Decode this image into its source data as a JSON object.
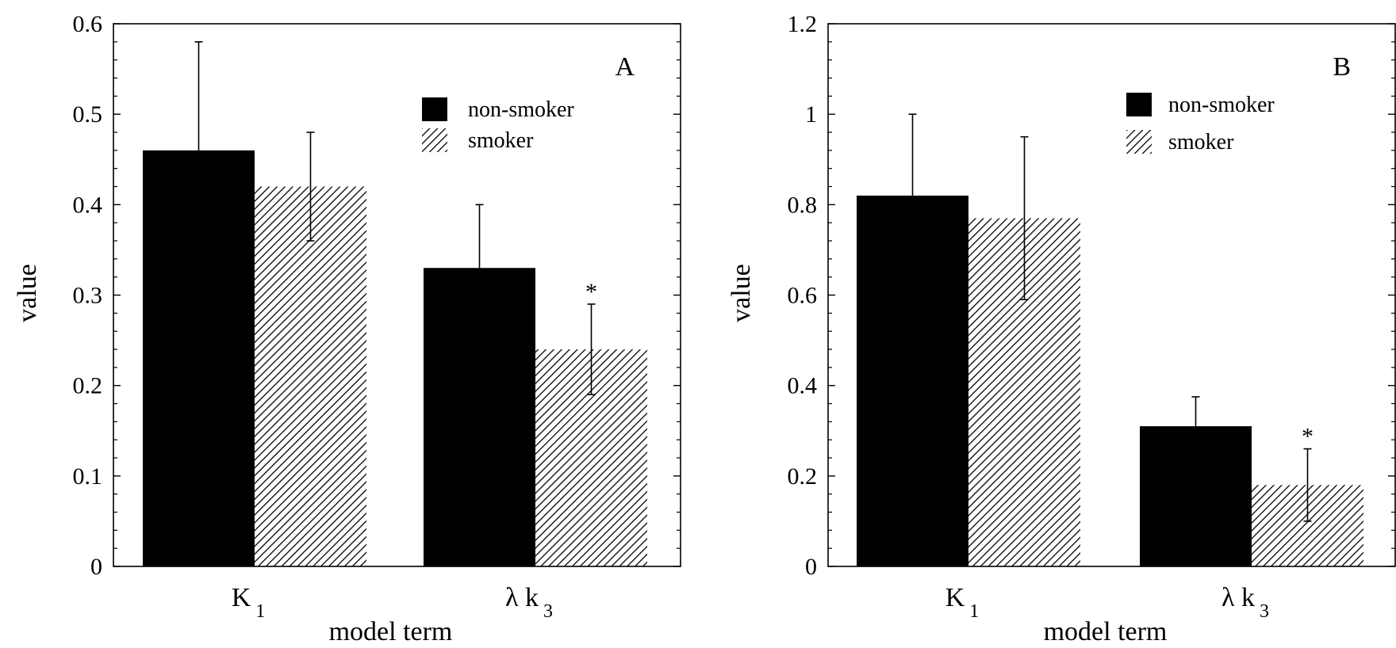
{
  "chart_data": [
    {
      "type": "bar",
      "panel_label": "A",
      "categories": [
        {
          "main": "K",
          "sub": "1"
        },
        {
          "main": "λ k",
          "sub": "3"
        }
      ],
      "series": [
        {
          "name": "non-smoker",
          "pattern": "solid",
          "values": [
            0.46,
            0.33
          ],
          "error_upper": [
            0.58,
            0.4
          ]
        },
        {
          "name": "smoker",
          "pattern": "hatched",
          "values": [
            0.42,
            0.24
          ],
          "error_lower": [
            0.36,
            0.19
          ],
          "error_upper": [
            0.48,
            0.29
          ]
        }
      ],
      "annotations": [
        {
          "text": "*",
          "category_index": 1,
          "series_index": 1
        }
      ],
      "xlabel": "model term",
      "ylabel": "value",
      "ylim": [
        0,
        0.6
      ],
      "yticks": [
        "0",
        "0.1",
        "0.2",
        "0.3",
        "0.4",
        "0.5",
        "0.6"
      ],
      "legend_position": "top-right"
    },
    {
      "type": "bar",
      "panel_label": "B",
      "categories": [
        {
          "main": "K",
          "sub": "1"
        },
        {
          "main": "λ k",
          "sub": "3"
        }
      ],
      "series": [
        {
          "name": "non-smoker",
          "pattern": "solid",
          "values": [
            0.82,
            0.31
          ],
          "error_upper": [
            1.0,
            0.375
          ]
        },
        {
          "name": "smoker",
          "pattern": "hatched",
          "values": [
            0.77,
            0.18
          ],
          "error_lower": [
            0.59,
            0.1
          ],
          "error_upper": [
            0.95,
            0.26
          ]
        }
      ],
      "annotations": [
        {
          "text": "*",
          "category_index": 1,
          "series_index": 1
        }
      ],
      "xlabel": "model term",
      "ylabel": "value",
      "ylim": [
        0,
        1.2
      ],
      "yticks": [
        "0",
        "0.2",
        "0.4",
        "0.6",
        "0.8",
        "1",
        "1.2"
      ],
      "legend_position": "top-right"
    }
  ]
}
